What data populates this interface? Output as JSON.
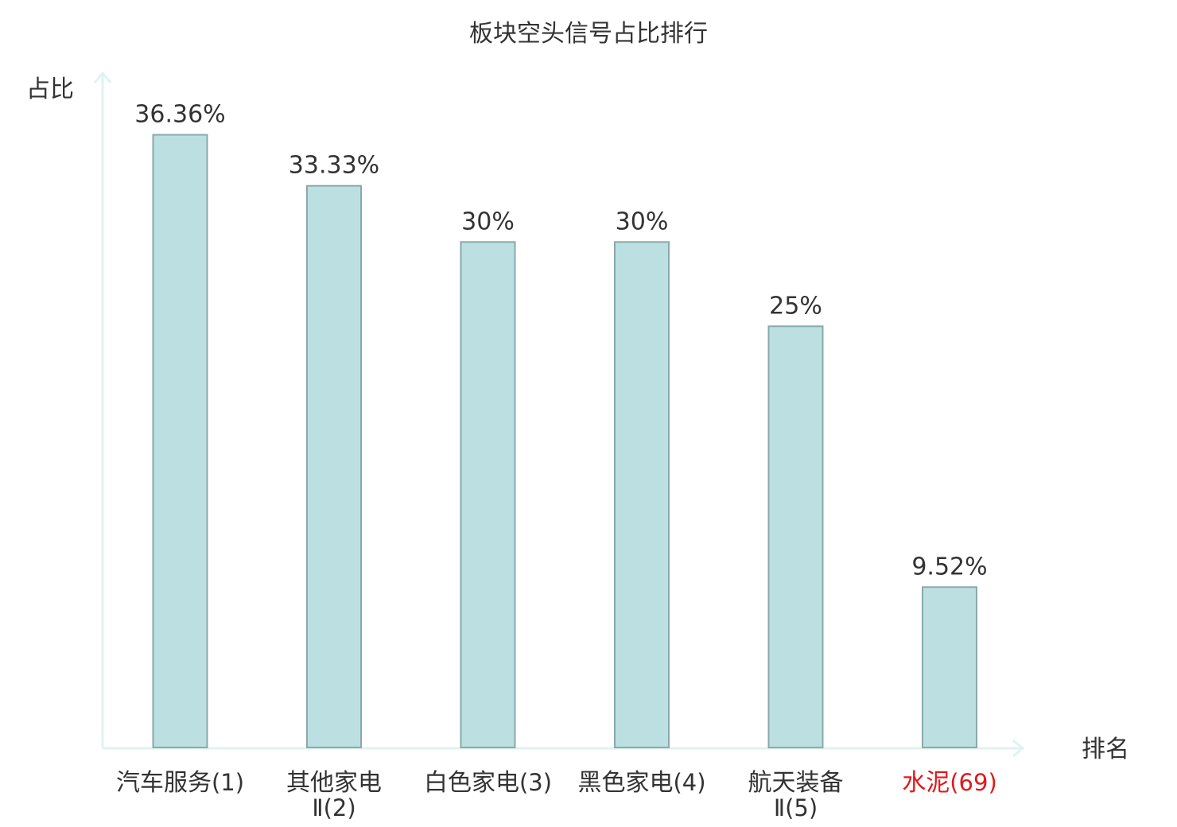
{
  "chart_data": {
    "type": "bar",
    "title": "板块空头信号占比排行",
    "ylabel": "占比",
    "xlabel": "排名",
    "ylim": [
      0,
      40
    ],
    "grid": false,
    "categories": [
      "汽车服务(1)",
      "其他家电Ⅱ(2)",
      "白色家电(3)",
      "黑色家电(4)",
      "航天装备Ⅱ(5)",
      "水泥(69)"
    ],
    "category_parts": [
      {
        "name": "汽车服务",
        "rank": "(1)",
        "wrap": false,
        "highlight": false
      },
      {
        "name": "其他家电",
        "rank": "Ⅱ(2)",
        "wrap": true,
        "highlight": false
      },
      {
        "name": "白色家电",
        "rank": "(3)",
        "wrap": false,
        "highlight": false
      },
      {
        "name": "黑色家电",
        "rank": "(4)",
        "wrap": false,
        "highlight": false
      },
      {
        "name": "航天装备",
        "rank": "Ⅱ(5)",
        "wrap": true,
        "highlight": false
      },
      {
        "name": "水泥",
        "rank": "(69)",
        "wrap": false,
        "highlight": true
      }
    ],
    "values": [
      36.36,
      33.33,
      30,
      30,
      25,
      9.52
    ],
    "value_labels": [
      "36.36%",
      "33.33%",
      "30%",
      "30%",
      "25%",
      "9.52%"
    ],
    "colors": {
      "bar_fill": "#bce0e2",
      "bar_stroke": "#8aa9aa",
      "axis": "#e0f3f1",
      "text": "#333333",
      "highlight_text": "#e0191e"
    }
  }
}
